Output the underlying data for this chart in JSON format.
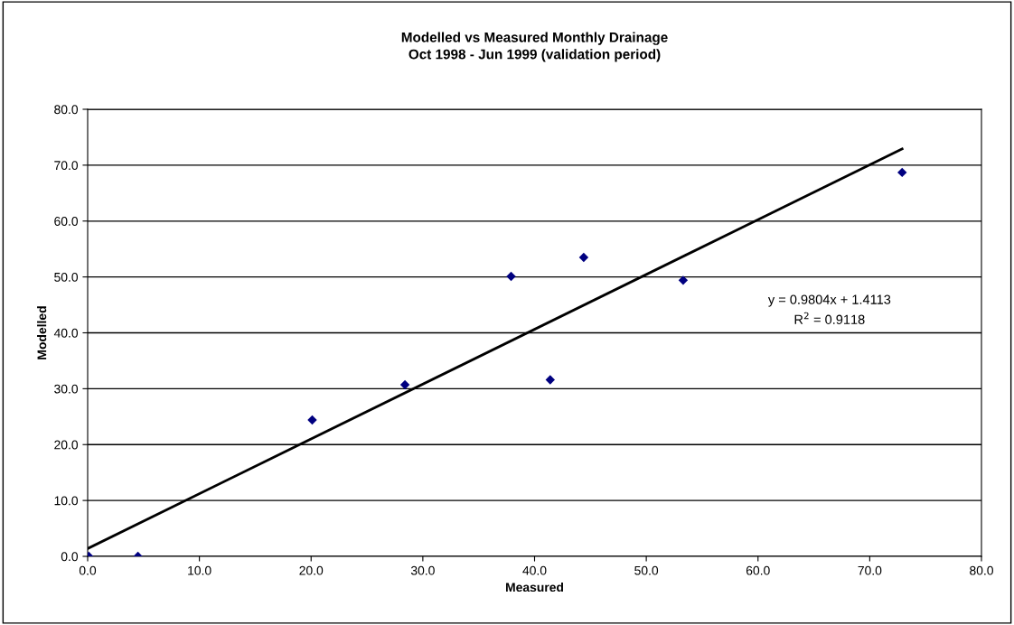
{
  "chart_data": {
    "type": "scatter",
    "title": "Modelled vs Measured Monthly Drainage\nOct 1998 - Jun 1999 (validation period)",
    "xlabel": "Measured",
    "ylabel": "Modelled",
    "series": [
      {
        "color": "#000080",
        "marker": "diamond",
        "x": [
          0.1,
          4.5,
          20.1,
          28.4,
          37.9,
          41.4,
          44.4,
          53.3,
          72.9
        ],
        "values": [
          0.0,
          0.0,
          24.4,
          30.7,
          50.1,
          31.6,
          53.5,
          49.4,
          68.7
        ]
      },
      {
        "type": "line",
        "color": "#000000",
        "line_style": "solid",
        "marker": "none",
        "x": [
          0.0,
          72.9
        ],
        "values": [
          1.4,
          72.9
        ]
      }
    ],
    "annotations": [
      "y = 0.9804x + 1.4113",
      "R$^{2}$ = 0.9118"
    ],
    "xlim": [
      0,
      80
    ],
    "xticks": [
      {
        "value": 0,
        "label": "0.0"
      },
      {
        "value": 10,
        "label": "10.0"
      },
      {
        "value": 20,
        "label": "20.0"
      },
      {
        "value": 30,
        "label": "30.0"
      },
      {
        "value": 40,
        "label": "40.0"
      },
      {
        "value": 50,
        "label": "50.0"
      },
      {
        "value": 60,
        "label": "60.0"
      },
      {
        "value": 70,
        "label": "70.0"
      },
      {
        "value": 80,
        "label": "80.0"
      }
    ],
    "ylim": [
      0,
      80
    ],
    "yticks": [
      {
        "value": 0,
        "label": "0.0"
      },
      {
        "value": 10,
        "label": "10.0"
      },
      {
        "value": 20,
        "label": "20.0"
      },
      {
        "value": 30,
        "label": "30.0"
      },
      {
        "value": 40,
        "label": "40.0"
      },
      {
        "value": 50,
        "label": "50.0"
      },
      {
        "value": 60,
        "label": "60.0"
      },
      {
        "value": 70,
        "label": "70.0"
      },
      {
        "value": 80,
        "label": "80.0"
      }
    ],
    "grid": "y",
    "legend": false
  }
}
